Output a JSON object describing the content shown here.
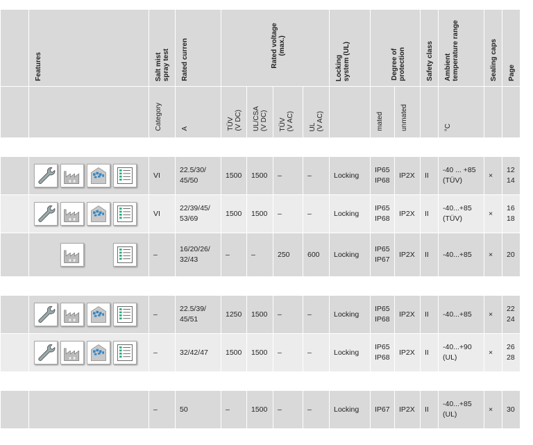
{
  "headers": {
    "features": "Features",
    "salt_mist": "Salt mist\nspray test",
    "rated_current": "Rated curren",
    "rated_voltage": "Rated voltage\n(max.)",
    "locking": "Locking\nsystem (UL)",
    "protection": "Degree of\nprotection",
    "safety": "Safety class",
    "ambient": "Ambient\ntemperature range",
    "sealing": "Sealing caps",
    "page": "Page"
  },
  "subheaders": {
    "category": "Category",
    "current_unit": "A",
    "tuv_vdc": "TÜV\n(V DC)",
    "ulcsa_vdc": "UL/CSA\n(V DC)",
    "tuv_vac": "TÜV\n(V AC)",
    "ul_vac": "UL\n(V AC)",
    "mated": "mated",
    "unmated": "unmated",
    "temp_unit": "°C"
  },
  "groups": [
    {
      "rows": [
        {
          "icons": [
            "wrench-icon",
            "factory-icon",
            "building-icon",
            "checklist-icon"
          ],
          "category": "VI",
          "current": "22.5/30/\n45/50",
          "tuv_vdc": "1500",
          "ulcsa_vdc": "1500",
          "tuv_vac": "–",
          "ul_vac": "–",
          "locking": "Locking",
          "mated": "IP65\nIP68",
          "unmated": "IP2X",
          "safety": "II",
          "temp": "-40 ... +85\n(TÜV)",
          "caps": "×",
          "page": "12\n14"
        },
        {
          "icons": [
            "wrench-icon",
            "factory-icon",
            "building-icon",
            "checklist-icon"
          ],
          "category": "VI",
          "current": "22/39/45/\n53/69",
          "tuv_vdc": "1500",
          "ulcsa_vdc": "1500",
          "tuv_vac": "–",
          "ul_vac": "–",
          "locking": "Locking",
          "mated": "IP65\nIP68",
          "unmated": "IP2X",
          "safety": "II",
          "temp": "-40...+85\n(TÜV)",
          "caps": "×",
          "page": "16\n18"
        },
        {
          "icons": [
            "",
            "factory-icon",
            "",
            "checklist-icon"
          ],
          "category": "–",
          "current": "16/20/26/\n32/43",
          "tuv_vdc": "–",
          "ulcsa_vdc": "–",
          "tuv_vac": "250",
          "ul_vac": "600",
          "locking": "Locking",
          "mated": "IP65\nIP67",
          "unmated": "IP2X",
          "safety": "II",
          "temp": "-40...+85",
          "caps": "×",
          "page": "20"
        }
      ]
    },
    {
      "rows": [
        {
          "icons": [
            "wrench-icon",
            "factory-icon",
            "building-icon",
            "checklist-icon"
          ],
          "category": "–",
          "current": "22.5/39/\n45/51",
          "tuv_vdc": "1250",
          "ulcsa_vdc": "1500",
          "tuv_vac": "–",
          "ul_vac": "–",
          "locking": "Locking",
          "mated": "IP65\nIP68",
          "unmated": "IP2X",
          "safety": "II",
          "temp": "-40...+85",
          "caps": "×",
          "page": "22\n24"
        },
        {
          "icons": [
            "wrench-icon",
            "factory-icon",
            "building-icon",
            "checklist-icon"
          ],
          "category": "–",
          "current": "32/42/47",
          "tuv_vdc": "1500",
          "ulcsa_vdc": "1500",
          "tuv_vac": "–",
          "ul_vac": "–",
          "locking": "Locking",
          "mated": "IP65\nIP68",
          "unmated": "IP2X",
          "safety": "II",
          "temp": "-40...+90\n(UL)",
          "caps": "×",
          "page": "26\n28"
        }
      ]
    },
    {
      "rows": [
        {
          "icons": [],
          "category": "–",
          "current": "50",
          "tuv_vdc": "–",
          "ulcsa_vdc": "1500",
          "tuv_vac": "–",
          "ul_vac": "–",
          "locking": "Locking",
          "mated": "IP67",
          "unmated": "IP2X",
          "safety": "II",
          "temp": "-40...+85\n(UL)",
          "caps": "×",
          "page": "30"
        }
      ]
    }
  ]
}
